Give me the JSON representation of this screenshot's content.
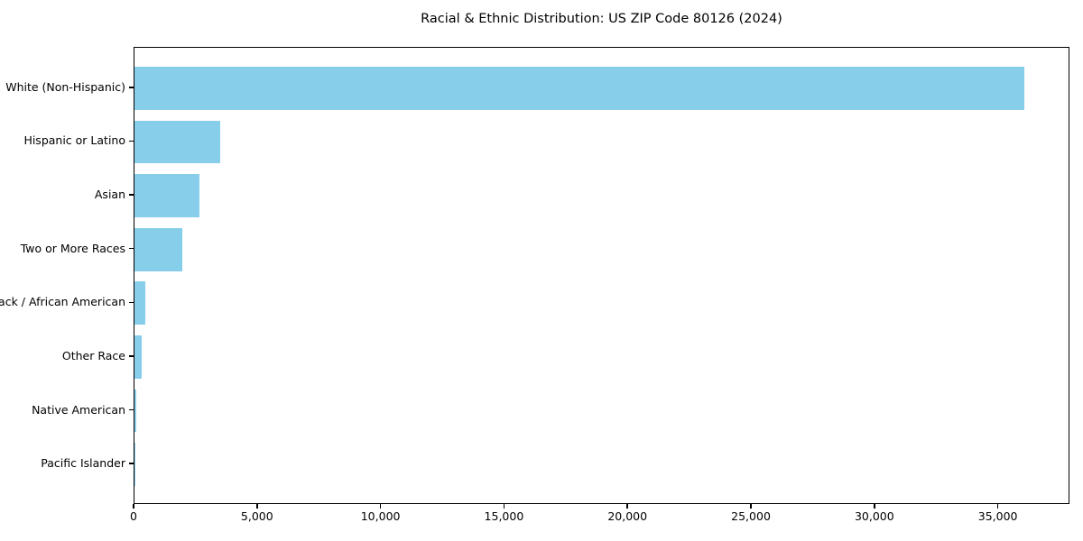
{
  "chart_data": {
    "type": "bar",
    "orientation": "horizontal",
    "title": "Racial & Ethnic Distribution: US ZIP Code 80126 (2024)",
    "categories": [
      "White (Non-Hispanic)",
      "Hispanic or Latino",
      "Asian",
      "Two or More Races",
      "Black / African American",
      "Other Race",
      "Native American",
      "Pacific Islander"
    ],
    "values": [
      36100,
      3470,
      2630,
      1930,
      430,
      280,
      70,
      25
    ],
    "xlabel": "",
    "ylabel": "",
    "xlim": [
      0,
      37900
    ],
    "xticks": [
      0,
      5000,
      10000,
      15000,
      20000,
      25000,
      30000,
      35000
    ],
    "bar_color": "#87CEEB",
    "grid": false,
    "legend": false,
    "bar_height_fraction": 0.8
  }
}
